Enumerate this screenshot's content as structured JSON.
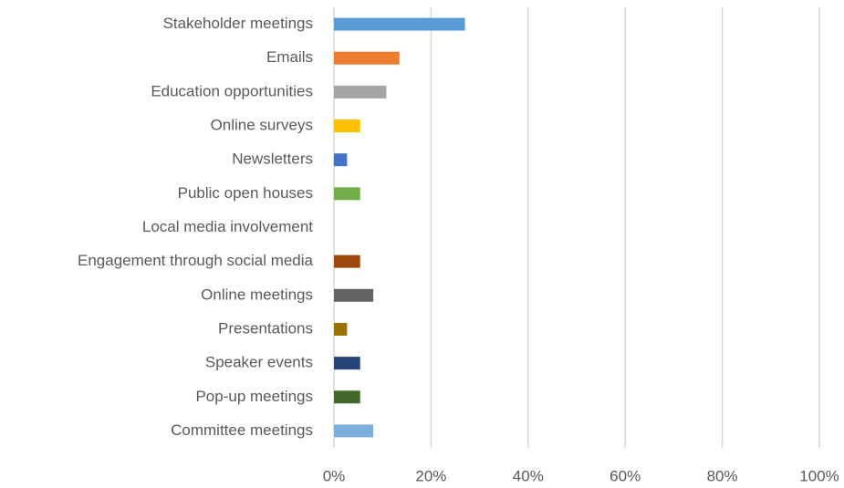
{
  "chart_data": {
    "type": "bar",
    "orientation": "horizontal",
    "categories": [
      "Stakeholder meetings",
      "Emails",
      "Education opportunities",
      "Online surveys",
      "Newsletters",
      "Public open houses",
      "Local media involvement",
      "Engagement through social media",
      "Online meetings",
      "Presentations",
      "Speaker events",
      "Pop-up meetings",
      "Committee meetings"
    ],
    "values": [
      27.0,
      13.5,
      10.8,
      5.4,
      2.7,
      5.4,
      0,
      5.4,
      8.1,
      2.7,
      5.4,
      5.4,
      8.1
    ],
    "colors": [
      "#5b9bd5",
      "#ed7d31",
      "#a5a5a5",
      "#ffc000",
      "#4472c4",
      "#70ad47",
      "#255e91",
      "#9e480e",
      "#636363",
      "#997300",
      "#264478",
      "#43682b",
      "#7cafdd"
    ],
    "xlim": [
      0,
      100
    ],
    "xticks": [
      {
        "value": 0,
        "label": "0%"
      },
      {
        "value": 20,
        "label": "20%"
      },
      {
        "value": 40,
        "label": "40%"
      },
      {
        "value": 60,
        "label": "60%"
      },
      {
        "value": 80,
        "label": "80%"
      },
      {
        "value": 100,
        "label": "100%"
      }
    ],
    "grid": true
  }
}
